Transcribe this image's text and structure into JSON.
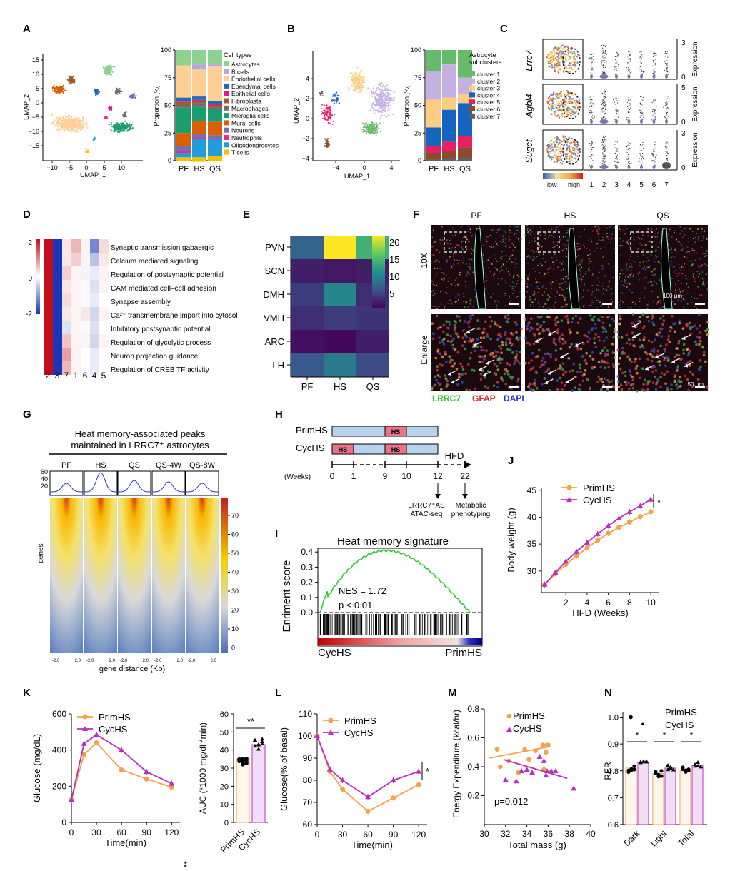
{
  "panel_labels": [
    "A",
    "B",
    "C",
    "D",
    "E",
    "F",
    "G",
    "H",
    "I",
    "J",
    "K",
    "L",
    "M",
    "N"
  ],
  "colors": {
    "primhs": "#F5A34A",
    "cychs": "#B72FC2",
    "green": "#2ECC2E",
    "red": "#D62D2D",
    "blue": "#2233CC"
  },
  "panelA": {
    "umap": {
      "xlabel": "UMAP_1",
      "ylabel": "UMAP_2",
      "xticks": [
        "−10",
        "−5",
        "0",
        "5",
        "10"
      ],
      "yticks": [
        "15",
        "10",
        "5",
        "0",
        "−5",
        "−10",
        "−15"
      ]
    },
    "bar": {
      "ylabel": "Proportion [%]",
      "yticks": [
        "100",
        "75",
        "50",
        "25",
        "0"
      ],
      "categories": [
        "PF",
        "HS",
        "QS"
      ],
      "legend_title": "Cell types",
      "legend": [
        {
          "name": "Astrocytes",
          "color": "#8FD18F"
        },
        {
          "name": "B cells",
          "color": "#B9A6D9"
        },
        {
          "name": "Endothelial cells",
          "color": "#FFCF96"
        },
        {
          "name": "Ependymal cells",
          "color": "#1E6BB8"
        },
        {
          "name": "Epithelial cells",
          "color": "#E8168A"
        },
        {
          "name": "Fibroblasts",
          "color": "#A05A2C"
        },
        {
          "name": "Macrophages",
          "color": "#6E6E6E"
        },
        {
          "name": "Microglia cells",
          "color": "#1B9E6E"
        },
        {
          "name": "Mural cells",
          "color": "#D95F02"
        },
        {
          "name": "Neurons",
          "color": "#7570B3"
        },
        {
          "name": "Neutrophils",
          "color": "#E7298A"
        },
        {
          "name": "Oligodendrocytes",
          "color": "#1F9EDB"
        },
        {
          "name": "T cells",
          "color": "#F2C200"
        }
      ]
    }
  },
  "panelB": {
    "umap": {
      "xlabel": "UMAP_1",
      "ylabel": "UMAP_2",
      "xticks": [
        "−4",
        "0",
        "4"
      ],
      "yticks": [
        "4",
        "2",
        "0",
        "−2",
        "−4"
      ]
    },
    "bar": {
      "ylabel": "Proportion [%]",
      "yticks": [
        "100",
        "75",
        "50",
        "25",
        "0"
      ],
      "categories": [
        "PF",
        "HS",
        "QS"
      ],
      "legend_title": "Astrocyte subclusters",
      "legend": [
        {
          "name": "cluster 1",
          "color": "#66BB6A"
        },
        {
          "name": "cluster 2",
          "color": "#C3B1E1"
        },
        {
          "name": "cluster 3",
          "color": "#FFCC80"
        },
        {
          "name": "cluster 4",
          "color": "#1565C0"
        },
        {
          "name": "cluster 5",
          "color": "#E91E63"
        },
        {
          "name": "cluster 6",
          "color": "#8D4A2B"
        },
        {
          "name": "cluster 7",
          "color": "#616161"
        }
      ]
    }
  },
  "panelC": {
    "genes": [
      "Lrrc7",
      "Agbl4",
      "Sugct"
    ],
    "xticks": [
      "1",
      "2",
      "3",
      "4",
      "5",
      "6",
      "7"
    ],
    "ylabel": "Expression",
    "ymax": [
      "3",
      "5",
      "3"
    ],
    "low": "low",
    "high": "high"
  },
  "panelD": {
    "scale": [
      "2",
      "0",
      "-2"
    ],
    "columns": [
      "2",
      "3",
      "7",
      "1",
      "6",
      "4",
      "5"
    ],
    "terms": [
      "Synaptic transmission gabaergic",
      "Calcium mediated signaling",
      "Regulation of postsynaptic potential",
      "CAM mediated cell–cell adhesion",
      "Synapse assembly",
      "Ca²⁺ transmembrane import into cytosol",
      "Inhibitory postsynaptic potential",
      "Regulation of glycolytic process",
      "Neuron projection guidance",
      "Regulation of CREB TF activity"
    ]
  },
  "panelE": {
    "rows": [
      "PVN",
      "SCN",
      "DMH",
      "VMH",
      "ARC",
      "LH"
    ],
    "cols": [
      "PF",
      "HS",
      "QS"
    ],
    "values": [
      [
        7,
        22,
        14
      ],
      [
        2,
        1.5,
        2
      ],
      [
        4,
        10,
        3
      ],
      [
        3,
        4,
        3.5
      ],
      [
        1,
        0.5,
        2
      ],
      [
        6,
        9,
        5
      ]
    ],
    "scale": [
      "20",
      "15",
      "10",
      "5"
    ]
  },
  "panelF": {
    "cols": [
      "PF",
      "HS",
      "QS"
    ],
    "rows": [
      "10X",
      "Enlarge"
    ],
    "scalebars": [
      "100 μm",
      "50 μm"
    ],
    "stain": [
      "LRRC7",
      "GFAP",
      "DAPI"
    ]
  },
  "panelG": {
    "title1": "Heat memory-associated peaks",
    "title2": "maintained in LRRC7⁺ astrocytes",
    "cols": [
      "PF",
      "HS",
      "QS",
      "QS-4W",
      "QS-8W"
    ],
    "profile_yticks": [
      "60",
      "40",
      "20"
    ],
    "ylabel": "genes",
    "xlabel": "gene distance (Kb)",
    "xticks": [
      "-2.0",
      "2.0"
    ],
    "scale": [
      "70",
      "60",
      "50",
      "40",
      "30",
      "20",
      "10",
      "0"
    ]
  },
  "panelH": {
    "groups": [
      "PrimHS",
      "CycHS"
    ],
    "hs": "HS",
    "hfd": "HFD",
    "weeks_label": "(Weeks)",
    "weeks": [
      "0",
      "1",
      "9",
      "10",
      "12",
      "22"
    ],
    "notes": [
      "LRRC7⁺AS",
      "ATAC-seq",
      "Metabolic",
      "phenotyping"
    ]
  },
  "panelI": {
    "title": "Heat memory signature",
    "ylabel": "Enriment score",
    "yticks": [
      "0.4",
      "0.3",
      "0.2",
      "0.1",
      "0.0"
    ],
    "nes": "NES = 1.72",
    "p": "p < 0.01",
    "left": "CycHS",
    "right": "PrimHS"
  },
  "chart_data": [
    {
      "id": "J",
      "type": "line",
      "xlabel": "HFD (Weeks)",
      "ylabel": "Body weight (g)",
      "x": [
        0,
        1,
        2,
        3,
        4,
        5,
        6,
        7,
        8,
        9,
        10
      ],
      "xticks": [
        2,
        4,
        6,
        8,
        10
      ],
      "yticks": [
        30,
        35,
        40,
        45
      ],
      "xlim": [
        -0.3,
        10.8
      ],
      "ylim": [
        26,
        45.5
      ],
      "series": [
        {
          "name": "PrimHS",
          "values": [
            27.5,
            29.5,
            31.2,
            32.8,
            34.3,
            35.7,
            37.0,
            38.1,
            39.1,
            40.1,
            41.0
          ]
        },
        {
          "name": "CycHS",
          "values": [
            27.5,
            29.7,
            31.8,
            33.6,
            35.3,
            36.9,
            38.4,
            39.8,
            41.0,
            42.1,
            43.3
          ]
        }
      ],
      "annotation": "*"
    },
    {
      "id": "K",
      "type": "line",
      "xlabel": "Time(min)",
      "ylabel": "Glucose (mg/dL)",
      "x": [
        0,
        15,
        30,
        60,
        90,
        120
      ],
      "xticks": [
        0,
        30,
        60,
        90,
        120
      ],
      "yticks": [
        0,
        200,
        400,
        600
      ],
      "xlim": [
        0,
        130
      ],
      "ylim": [
        0,
        600
      ],
      "series": [
        {
          "name": "PrimHS",
          "values": [
            125,
            375,
            440,
            290,
            240,
            195
          ]
        },
        {
          "name": "CycHS",
          "values": [
            125,
            435,
            485,
            400,
            280,
            215
          ]
        }
      ],
      "annotation": "**"
    },
    {
      "id": "K2",
      "type": "bar",
      "ylabel": "AUC (*1000 mg/dl *min)",
      "categories": [
        "PrimHS",
        "CycHS"
      ],
      "values": [
        35,
        43
      ],
      "yticks": [
        0,
        10,
        20,
        30,
        40,
        50,
        60
      ],
      "ylim": [
        0,
        60
      ],
      "annotation": "**"
    },
    {
      "id": "L",
      "type": "line",
      "xlabel": "Time(min)",
      "ylabel": "Glucose(% of basal)",
      "x": [
        0,
        15,
        30,
        60,
        90,
        120
      ],
      "xticks": [
        0,
        30,
        60,
        90,
        120
      ],
      "yticks": [
        60,
        70,
        80,
        90,
        100,
        110
      ],
      "xlim": [
        0,
        130
      ],
      "ylim": [
        60,
        110
      ],
      "series": [
        {
          "name": "PrimHS",
          "values": [
            100,
            84,
            76,
            66,
            72,
            78
          ]
        },
        {
          "name": "CycHS",
          "values": [
            100,
            85,
            80,
            72.5,
            80,
            84
          ]
        }
      ],
      "annotation": "*"
    },
    {
      "id": "M",
      "type": "scatter",
      "xlabel": "Total mass (g)",
      "ylabel": "Energy Expenditure (kcal/hr)",
      "xticks": [
        30,
        32,
        34,
        36,
        38,
        40
      ],
      "yticks": [
        0.2,
        0.4,
        0.6,
        0.8
      ],
      "xlim": [
        30,
        40
      ],
      "ylim": [
        0,
        0.8
      ],
      "series": [
        {
          "name": "PrimHS",
          "points": [
            [
              31.2,
              0.52
            ],
            [
              31.5,
              0.4
            ],
            [
              32.3,
              0.44
            ],
            [
              33.2,
              0.36
            ],
            [
              33.8,
              0.52
            ],
            [
              34.2,
              0.45
            ],
            [
              34.8,
              0.51
            ],
            [
              35.5,
              0.55
            ],
            [
              35.8,
              0.5
            ],
            [
              35.9,
              0.55
            ],
            [
              35.6,
              0.38
            ],
            [
              36.0,
              0.55
            ]
          ]
        },
        {
          "name": "CycHS",
          "points": [
            [
              32.0,
              0.31
            ],
            [
              33.0,
              0.3
            ],
            [
              33.5,
              0.37
            ],
            [
              34.0,
              0.38
            ],
            [
              34.5,
              0.36
            ],
            [
              35.2,
              0.47
            ],
            [
              35.6,
              0.44
            ],
            [
              35.8,
              0.34
            ],
            [
              36.3,
              0.37
            ],
            [
              36.7,
              0.37
            ],
            [
              38.4,
              0.25
            ],
            [
              35.9,
              0.37
            ]
          ]
        }
      ],
      "annotation": "p=0.012"
    },
    {
      "id": "N",
      "type": "bar",
      "ylabel": "RER",
      "categories": [
        "Dark",
        "Light",
        "Total"
      ],
      "yticks": [
        0.6,
        0.7,
        0.8,
        0.9,
        1.0
      ],
      "ylim": [
        0.6,
        1.02
      ],
      "series": [
        {
          "name": "PrimHS",
          "values": [
            0.81,
            0.79,
            0.8
          ]
        },
        {
          "name": "CycHS",
          "values": [
            0.83,
            0.81,
            0.82
          ]
        }
      ],
      "annotation": "*"
    }
  ]
}
